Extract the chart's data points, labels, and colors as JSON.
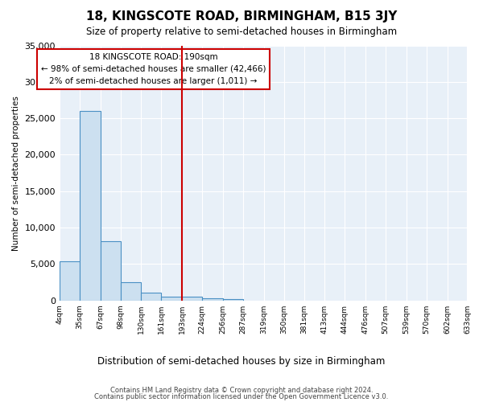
{
  "title": "18, KINGSCOTE ROAD, BIRMINGHAM, B15 3JY",
  "subtitle": "Size of property relative to semi-detached houses in Birmingham",
  "xlabel": "Distribution of semi-detached houses by size in Birmingham",
  "ylabel": "Number of semi-detached properties",
  "footer1": "Contains HM Land Registry data © Crown copyright and database right 2024.",
  "footer2": "Contains public sector information licensed under the Open Government Licence v3.0.",
  "annotation_title": "18 KINGSCOTE ROAD: 190sqm",
  "annotation_line1": "← 98% of semi-detached houses are smaller (42,466)",
  "annotation_line2": "2% of semi-detached houses are larger (1,011) →",
  "property_size": 190,
  "bin_edges": [
    4,
    35,
    67,
    98,
    130,
    161,
    193,
    224,
    256,
    287,
    319,
    350,
    381,
    413,
    444,
    476,
    507,
    539,
    570,
    602,
    633
  ],
  "bin_counts": [
    5400,
    26000,
    8100,
    2500,
    1100,
    500,
    500,
    300,
    150,
    0,
    0,
    0,
    0,
    0,
    0,
    0,
    0,
    0,
    0,
    0
  ],
  "bar_color": "#cce0f0",
  "bar_edge_color": "#4a90c4",
  "vline_color": "#cc0000",
  "vline_x": 193,
  "ylim": [
    0,
    35000
  ],
  "yticks": [
    0,
    5000,
    10000,
    15000,
    20000,
    25000,
    30000,
    35000
  ],
  "plot_bg_color": "#e8f0f8",
  "fig_bg_color": "#ffffff",
  "grid_color": "#ffffff",
  "annotation_box_color": "#ffffff",
  "annotation_box_edge": "#cc0000"
}
